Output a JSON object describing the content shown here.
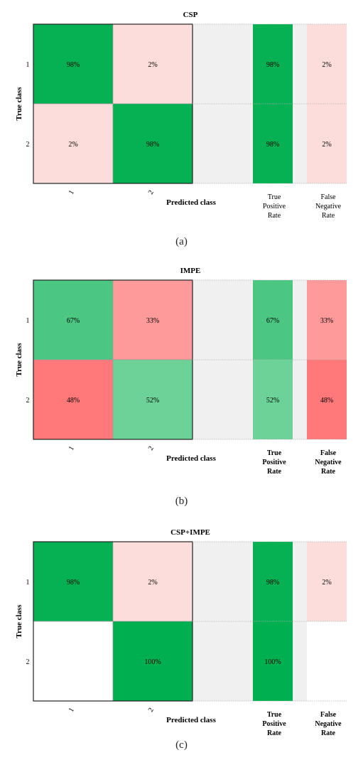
{
  "chart_data": [
    {
      "type": "heatmap",
      "title": "CSP",
      "ylabel": "True class",
      "xlabel": "Predicted class",
      "row_labels": [
        "1",
        "2"
      ],
      "col_labels": [
        "1",
        "2"
      ],
      "matrix": [
        [
          "98%",
          "2%"
        ],
        [
          "2%",
          "98%"
        ]
      ],
      "tpr_label": "True Positive Rate",
      "fnr_label": "False Negative Rate",
      "tpr": [
        "98%",
        "98%"
      ],
      "fnr": [
        "2%",
        "2%"
      ],
      "caption": "(a)"
    },
    {
      "type": "heatmap",
      "title": "IMPE",
      "ylabel": "True class",
      "xlabel": "Predicted class",
      "row_labels": [
        "1",
        "2"
      ],
      "col_labels": [
        "1",
        "2"
      ],
      "matrix": [
        [
          "67%",
          "33%"
        ],
        [
          "48%",
          "52%"
        ]
      ],
      "tpr_label": "True Positive Rate",
      "fnr_label": "False Negative Rate",
      "tpr": [
        "67%",
        "52%"
      ],
      "fnr": [
        "33%",
        "48%"
      ],
      "caption": "(b)"
    },
    {
      "type": "heatmap",
      "title": "CSP+IMPE",
      "ylabel": "True class",
      "xlabel": "Predicted class",
      "row_labels": [
        "1",
        "2"
      ],
      "col_labels": [
        "1",
        "2"
      ],
      "matrix": [
        [
          "98%",
          "2%"
        ],
        [
          "",
          "100%"
        ]
      ],
      "tpr_label": "True Positive Rate",
      "fnr_label": "False Negative Rate",
      "tpr": [
        "98%",
        "100%"
      ],
      "fnr": [
        "2%",
        ""
      ],
      "caption": "(c)"
    }
  ],
  "colors": {
    "strong_green": "#00b050",
    "light_pink": "#fde1df",
    "mid_green": "#4ec77f",
    "pale_green": "#71d39a",
    "salmon": "#fc9593",
    "red": "#ff7576",
    "gap_gray": "#f0f0f0",
    "empty": "#ffffff"
  }
}
